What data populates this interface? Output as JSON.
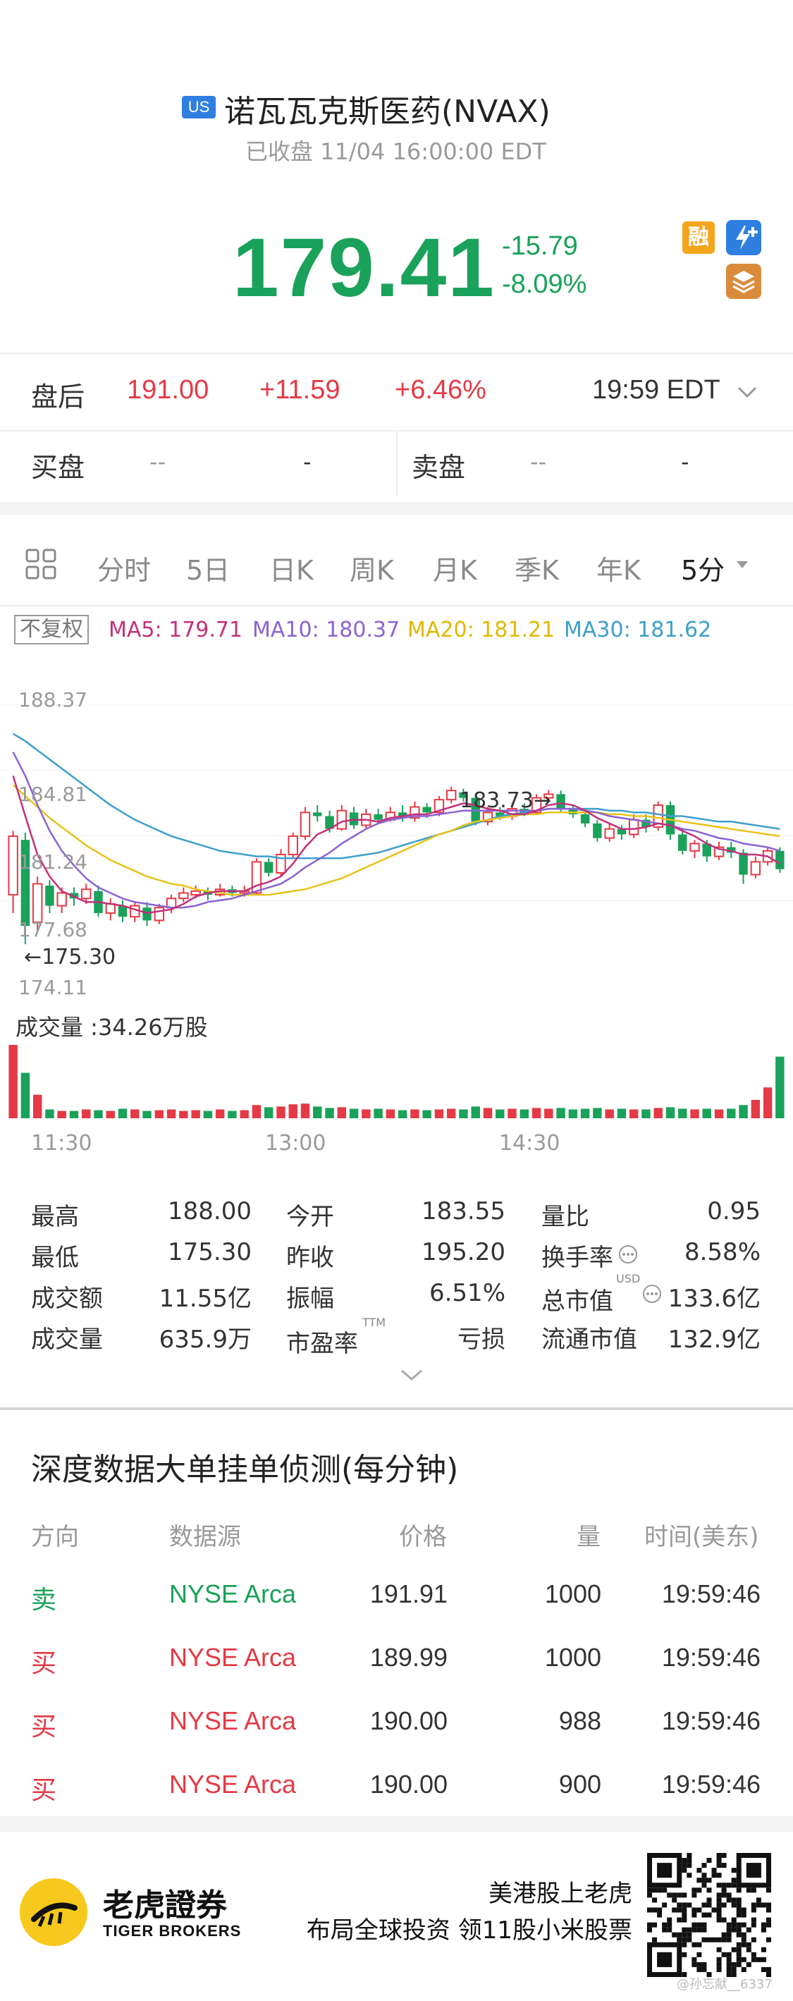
{
  "header": {
    "market_badge": "US",
    "title": "诺瓦瓦克斯医药(NVAX)",
    "status": "已收盘 11/04 16:00:00 EDT",
    "price": "179.41",
    "change": "-15.79",
    "change_pct": "-8.09%",
    "icons": [
      "margin-icon",
      "flash-icon",
      "layers-icon"
    ],
    "rong_label": "融"
  },
  "after_hours": {
    "label": "盘后",
    "price": "191.00",
    "change": "+11.59",
    "change_pct": "+6.46%",
    "time": "19:59 EDT"
  },
  "quote": {
    "bid_label": "买盘",
    "bid_price": "--",
    "bid_size": "-",
    "ask_label": "卖盘",
    "ask_price": "--",
    "ask_size": "-"
  },
  "tabs": [
    "分时",
    "5日",
    "日K",
    "周K",
    "月K",
    "季K",
    "年K",
    "5分"
  ],
  "active_tab": "5分",
  "indicators": {
    "adjust": "不复权",
    "ma5": "MA5: 179.71",
    "ma10": "MA10: 180.37",
    "ma20": "MA20: 181.21",
    "ma30": "MA30: 181.62",
    "colors": {
      "ma5": "#c2317a",
      "ma10": "#8a63d2",
      "ma20": "#e8c21a",
      "ma30": "#3da0c9",
      "up": "#e53945",
      "down": "#1aa15a"
    }
  },
  "chart_data": {
    "type": "candlestick",
    "y_ticks": [
      "188.37",
      "184.81",
      "181.24",
      "177.68",
      "174.11"
    ],
    "ylim": [
      174.11,
      188.37
    ],
    "high_marker": "183.73",
    "low_marker": "175.30",
    "x_ticks": [
      "11:30",
      "13:00",
      "14:30"
    ],
    "volume_label": "成交量 :34.26万股",
    "candles": [
      {
        "o": 178.0,
        "c": 181.2,
        "h": 181.5,
        "l": 177.0
      },
      {
        "o": 181.0,
        "c": 176.3,
        "h": 181.4,
        "l": 175.3
      },
      {
        "o": 176.5,
        "c": 178.6,
        "h": 179.0,
        "l": 176.0
      },
      {
        "o": 178.5,
        "c": 177.4,
        "h": 178.8,
        "l": 177.0
      },
      {
        "o": 177.4,
        "c": 178.1,
        "h": 178.4,
        "l": 177.0
      },
      {
        "o": 178.1,
        "c": 177.8,
        "h": 178.4,
        "l": 177.4
      },
      {
        "o": 177.8,
        "c": 178.3,
        "h": 178.6,
        "l": 177.5
      },
      {
        "o": 178.2,
        "c": 177.0,
        "h": 178.5,
        "l": 176.8
      },
      {
        "o": 177.0,
        "c": 177.5,
        "h": 177.8,
        "l": 176.6
      },
      {
        "o": 177.4,
        "c": 176.8,
        "h": 177.7,
        "l": 176.5
      },
      {
        "o": 176.8,
        "c": 177.4,
        "h": 177.6,
        "l": 176.5
      },
      {
        "o": 177.3,
        "c": 176.6,
        "h": 177.6,
        "l": 176.3
      },
      {
        "o": 176.6,
        "c": 177.3,
        "h": 177.5,
        "l": 176.4
      },
      {
        "o": 177.3,
        "c": 177.8,
        "h": 178.0,
        "l": 177.0
      },
      {
        "o": 177.8,
        "c": 178.1,
        "h": 178.4,
        "l": 177.6
      },
      {
        "o": 178.0,
        "c": 178.2,
        "h": 178.5,
        "l": 177.8
      },
      {
        "o": 178.2,
        "c": 178.0,
        "h": 178.4,
        "l": 177.7
      },
      {
        "o": 178.0,
        "c": 178.3,
        "h": 178.6,
        "l": 177.9
      },
      {
        "o": 178.3,
        "c": 178.1,
        "h": 178.5,
        "l": 177.9
      },
      {
        "o": 178.1,
        "c": 178.2,
        "h": 178.5,
        "l": 177.9
      },
      {
        "o": 178.1,
        "c": 179.8,
        "h": 180.0,
        "l": 178.0
      },
      {
        "o": 179.8,
        "c": 179.2,
        "h": 180.0,
        "l": 179.0
      },
      {
        "o": 179.2,
        "c": 180.2,
        "h": 180.5,
        "l": 179.0
      },
      {
        "o": 180.2,
        "c": 181.2,
        "h": 181.4,
        "l": 180.0
      },
      {
        "o": 181.2,
        "c": 182.5,
        "h": 182.8,
        "l": 181.0
      },
      {
        "o": 182.5,
        "c": 182.3,
        "h": 182.9,
        "l": 182.0
      },
      {
        "o": 182.3,
        "c": 181.6,
        "h": 182.6,
        "l": 181.4
      },
      {
        "o": 181.6,
        "c": 182.6,
        "h": 182.9,
        "l": 181.5
      },
      {
        "o": 182.5,
        "c": 181.8,
        "h": 182.8,
        "l": 181.6
      },
      {
        "o": 181.8,
        "c": 182.4,
        "h": 182.7,
        "l": 181.6
      },
      {
        "o": 182.4,
        "c": 182.1,
        "h": 182.7,
        "l": 181.9
      },
      {
        "o": 182.1,
        "c": 182.5,
        "h": 182.8,
        "l": 182.0
      },
      {
        "o": 182.5,
        "c": 182.2,
        "h": 182.9,
        "l": 182.0
      },
      {
        "o": 182.2,
        "c": 182.8,
        "h": 183.1,
        "l": 182.0
      },
      {
        "o": 182.8,
        "c": 182.5,
        "h": 183.0,
        "l": 182.2
      },
      {
        "o": 182.5,
        "c": 183.2,
        "h": 183.4,
        "l": 182.3
      },
      {
        "o": 183.2,
        "c": 183.7,
        "h": 183.9,
        "l": 183.0
      },
      {
        "o": 183.6,
        "c": 183.3,
        "h": 183.8,
        "l": 183.1
      },
      {
        "o": 183.3,
        "c": 182.0,
        "h": 183.5,
        "l": 181.8
      },
      {
        "o": 182.0,
        "c": 182.5,
        "h": 182.8,
        "l": 181.8
      },
      {
        "o": 182.5,
        "c": 182.3,
        "h": 182.8,
        "l": 182.1
      },
      {
        "o": 182.3,
        "c": 182.7,
        "h": 183.0,
        "l": 182.1
      },
      {
        "o": 182.7,
        "c": 182.5,
        "h": 183.0,
        "l": 182.3
      },
      {
        "o": 182.5,
        "c": 183.3,
        "h": 183.5,
        "l": 182.4
      },
      {
        "o": 183.3,
        "c": 183.5,
        "h": 183.73,
        "l": 183.1
      },
      {
        "o": 183.5,
        "c": 182.7,
        "h": 183.7,
        "l": 182.5
      },
      {
        "o": 182.7,
        "c": 182.4,
        "h": 182.9,
        "l": 182.2
      },
      {
        "o": 182.4,
        "c": 181.9,
        "h": 182.6,
        "l": 181.7
      },
      {
        "o": 181.9,
        "c": 181.1,
        "h": 182.1,
        "l": 180.9
      },
      {
        "o": 181.1,
        "c": 181.6,
        "h": 181.9,
        "l": 180.9
      },
      {
        "o": 181.6,
        "c": 181.3,
        "h": 181.8,
        "l": 181.0
      },
      {
        "o": 181.3,
        "c": 182.1,
        "h": 182.4,
        "l": 181.1
      },
      {
        "o": 182.1,
        "c": 181.7,
        "h": 182.4,
        "l": 181.4
      },
      {
        "o": 181.7,
        "c": 182.9,
        "h": 183.1,
        "l": 181.5
      },
      {
        "o": 182.9,
        "c": 181.3,
        "h": 183.1,
        "l": 181.0
      },
      {
        "o": 181.3,
        "c": 180.4,
        "h": 181.6,
        "l": 180.2
      },
      {
        "o": 180.4,
        "c": 180.8,
        "h": 181.0,
        "l": 180.0
      },
      {
        "o": 180.8,
        "c": 180.1,
        "h": 181.0,
        "l": 179.8
      },
      {
        "o": 180.1,
        "c": 180.6,
        "h": 180.9,
        "l": 179.9
      },
      {
        "o": 180.6,
        "c": 180.3,
        "h": 180.9,
        "l": 180.0
      },
      {
        "o": 180.3,
        "c": 179.1,
        "h": 180.5,
        "l": 178.6
      },
      {
        "o": 179.1,
        "c": 179.8,
        "h": 180.1,
        "l": 178.9
      },
      {
        "o": 179.8,
        "c": 180.4,
        "h": 180.6,
        "l": 179.6
      },
      {
        "o": 180.4,
        "c": 179.4,
        "h": 180.6,
        "l": 179.2
      }
    ],
    "volumes": [
      1.0,
      0.62,
      0.32,
      0.12,
      0.1,
      0.1,
      0.12,
      0.11,
      0.1,
      0.13,
      0.12,
      0.1,
      0.11,
      0.12,
      0.1,
      0.11,
      0.1,
      0.12,
      0.1,
      0.11,
      0.18,
      0.15,
      0.16,
      0.19,
      0.2,
      0.16,
      0.14,
      0.15,
      0.13,
      0.12,
      0.13,
      0.12,
      0.11,
      0.12,
      0.11,
      0.12,
      0.13,
      0.12,
      0.16,
      0.14,
      0.12,
      0.13,
      0.12,
      0.14,
      0.13,
      0.14,
      0.12,
      0.13,
      0.14,
      0.12,
      0.13,
      0.12,
      0.12,
      0.14,
      0.15,
      0.13,
      0.12,
      0.13,
      0.12,
      0.13,
      0.18,
      0.25,
      0.42,
      0.84
    ],
    "ma5": [
      184.5,
      182.3,
      180.2,
      179.0,
      178.2,
      177.9,
      177.6,
      177.6,
      177.5,
      177.4,
      177.2,
      177.0,
      177.1,
      177.2,
      177.5,
      177.9,
      178.1,
      178.2,
      178.2,
      178.2,
      178.5,
      178.7,
      179.0,
      179.7,
      180.6,
      181.3,
      181.6,
      182.0,
      182.1,
      182.1,
      182.0,
      182.2,
      182.3,
      182.4,
      182.4,
      182.6,
      182.8,
      183.0,
      182.9,
      182.7,
      182.6,
      182.4,
      182.4,
      182.6,
      182.9,
      183.0,
      182.9,
      182.6,
      182.2,
      181.9,
      181.6,
      181.6,
      181.7,
      181.9,
      181.8,
      181.5,
      181.2,
      180.8,
      180.5,
      180.4,
      180.2,
      180.2,
      180.1,
      179.7
    ],
    "ma10": [
      185.8,
      184.5,
      182.9,
      181.5,
      180.4,
      179.6,
      178.9,
      178.4,
      178.1,
      177.8,
      177.6,
      177.5,
      177.4,
      177.3,
      177.3,
      177.4,
      177.6,
      177.7,
      177.8,
      178.0,
      178.2,
      178.4,
      178.6,
      179.0,
      179.5,
      179.9,
      180.3,
      180.8,
      181.2,
      181.6,
      181.9,
      182.1,
      182.2,
      182.3,
      182.3,
      182.4,
      182.5,
      182.6,
      182.6,
      182.6,
      182.6,
      182.6,
      182.6,
      182.6,
      182.7,
      182.7,
      182.7,
      182.6,
      182.5,
      182.3,
      182.2,
      182.1,
      182.0,
      181.9,
      181.8,
      181.6,
      181.5,
      181.3,
      181.1,
      181.0,
      180.8,
      180.7,
      180.6,
      180.4
    ],
    "ma20": [
      184.0,
      183.4,
      182.8,
      182.2,
      181.7,
      181.2,
      180.7,
      180.3,
      179.9,
      179.6,
      179.3,
      179.0,
      178.8,
      178.6,
      178.5,
      178.3,
      178.2,
      178.1,
      178.0,
      178.0,
      178.0,
      178.0,
      178.1,
      178.2,
      178.3,
      178.5,
      178.7,
      178.9,
      179.2,
      179.5,
      179.8,
      180.1,
      180.4,
      180.7,
      181.0,
      181.3,
      181.5,
      181.8,
      182.0,
      182.1,
      182.2,
      182.3,
      182.4,
      182.4,
      182.5,
      182.5,
      182.5,
      182.5,
      182.5,
      182.4,
      182.4,
      182.3,
      182.3,
      182.2,
      182.1,
      182.0,
      181.9,
      181.8,
      181.7,
      181.6,
      181.5,
      181.4,
      181.3,
      181.2
    ],
    "ma30": [
      186.8,
      186.4,
      185.9,
      185.4,
      184.9,
      184.4,
      183.9,
      183.4,
      182.9,
      182.5,
      182.1,
      181.8,
      181.5,
      181.2,
      181.0,
      180.8,
      180.6,
      180.4,
      180.3,
      180.2,
      180.1,
      180.1,
      180.0,
      180.0,
      180.0,
      180.0,
      180.0,
      180.0,
      180.1,
      180.2,
      180.3,
      180.5,
      180.7,
      180.9,
      181.1,
      181.3,
      181.5,
      181.7,
      181.9,
      182.1,
      182.3,
      182.4,
      182.5,
      182.6,
      182.7,
      182.7,
      182.7,
      182.7,
      182.7,
      182.6,
      182.6,
      182.5,
      182.5,
      182.4,
      182.3,
      182.3,
      182.2,
      182.1,
      182.0,
      182.0,
      181.9,
      181.8,
      181.7,
      181.6
    ]
  },
  "stats": {
    "high_label": "最高",
    "high": "188.00",
    "open_label": "今开",
    "open": "183.55",
    "vol_ratio_label": "量比",
    "vol_ratio": "0.95",
    "low_label": "最低",
    "low": "175.30",
    "prev_close_label": "昨收",
    "prev_close": "195.20",
    "turnover_rate_label": "换手率",
    "turnover_rate": "8.58%",
    "amount_label": "成交额",
    "amount": "11.55亿",
    "amplitude_label": "振幅",
    "amplitude": "6.51%",
    "mkt_cap_label": "总市值",
    "mkt_cap_sup": "USD",
    "mkt_cap": "133.6亿",
    "volume_label": "成交量",
    "volume": "635.9万",
    "pe_label": "市盈率",
    "pe_sup": "TTM",
    "pe": "亏损",
    "float_cap_label": "流通市值",
    "float_cap": "132.9亿"
  },
  "depth": {
    "title": "深度数据大单挂单侦测(每分钟)",
    "headers": [
      "方向",
      "数据源",
      "价格",
      "量",
      "时间(美东)"
    ],
    "rows": [
      {
        "dir": "卖",
        "source": "NYSE Arca",
        "price": "191.91",
        "qty": "1000",
        "time": "19:59:46",
        "side": "sell"
      },
      {
        "dir": "买",
        "source": "NYSE Arca",
        "price": "189.99",
        "qty": "1000",
        "time": "19:59:46",
        "side": "buy"
      },
      {
        "dir": "买",
        "source": "NYSE Arca",
        "price": "190.00",
        "qty": "988",
        "time": "19:59:46",
        "side": "buy"
      },
      {
        "dir": "买",
        "source": "NYSE Arca",
        "price": "190.00",
        "qty": "900",
        "time": "19:59:46",
        "side": "buy"
      }
    ]
  },
  "footer": {
    "brand_cn": "老虎證券",
    "brand_en": "TIGER BROKERS",
    "slogan1": "美港股上老虎",
    "slogan2": "布局全球投资 领11股小米股票",
    "watermark": "@孙忘献__6337"
  }
}
